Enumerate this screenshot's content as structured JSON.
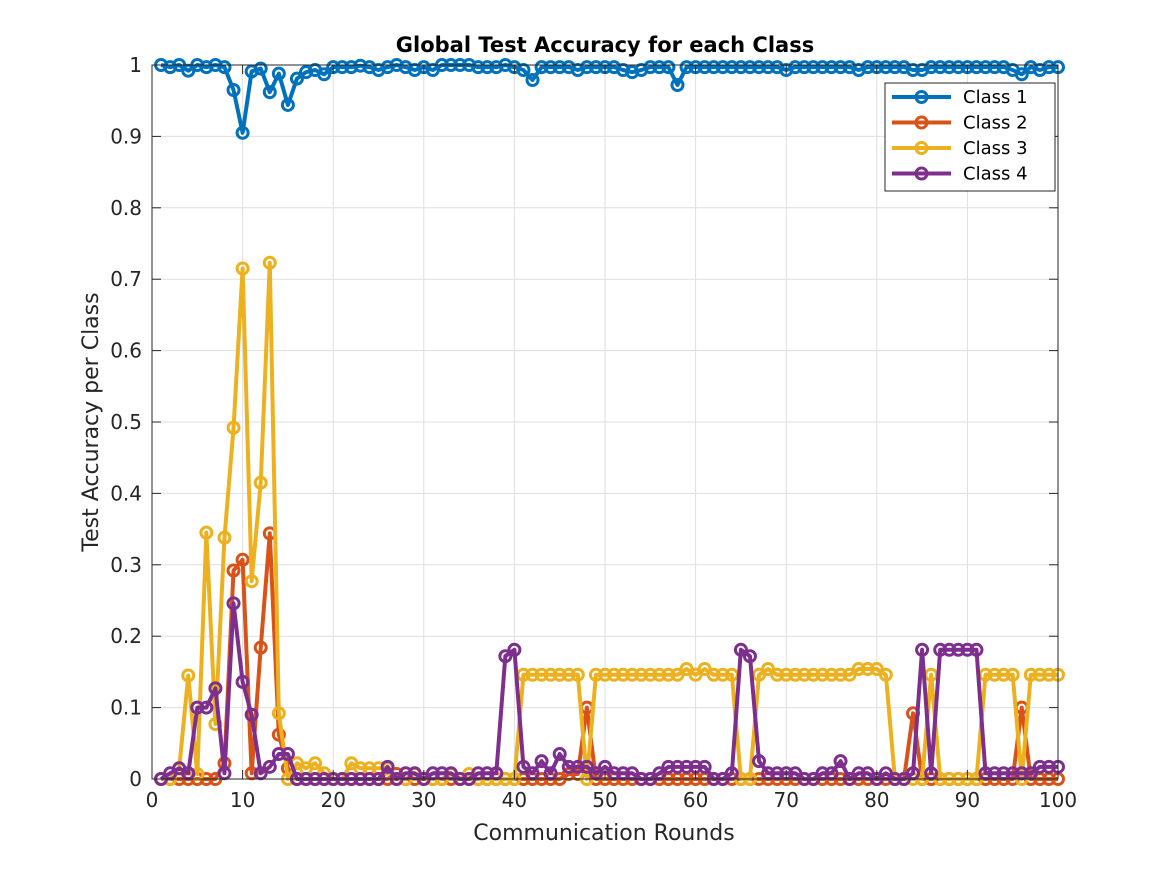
{
  "chart_data": {
    "type": "line",
    "title": "Global Test Accuracy for each Class",
    "xlabel": "Communication Rounds",
    "ylabel": "Test Accuracy per Class",
    "xlim": [
      0,
      100
    ],
    "ylim": [
      0,
      1
    ],
    "xticks": [
      "0",
      "10",
      "20",
      "30",
      "40",
      "50",
      "60",
      "70",
      "80",
      "90",
      "100"
    ],
    "yticks": [
      "0",
      "0.1",
      "0.2",
      "0.3",
      "0.4",
      "0.5",
      "0.6",
      "0.7",
      "0.8",
      "0.9",
      "1"
    ],
    "grid": true,
    "legend_position": "top-right",
    "x": [
      1,
      2,
      3,
      4,
      5,
      6,
      7,
      8,
      9,
      10,
      11,
      12,
      13,
      14,
      15,
      16,
      17,
      18,
      19,
      20,
      21,
      22,
      23,
      24,
      25,
      26,
      27,
      28,
      29,
      30,
      31,
      32,
      33,
      34,
      35,
      36,
      37,
      38,
      39,
      40,
      41,
      42,
      43,
      44,
      45,
      46,
      47,
      48,
      49,
      50,
      51,
      52,
      53,
      54,
      55,
      56,
      57,
      58,
      59,
      60,
      61,
      62,
      63,
      64,
      65,
      66,
      67,
      68,
      69,
      70,
      71,
      72,
      73,
      74,
      75,
      76,
      77,
      78,
      79,
      80,
      81,
      82,
      83,
      84,
      85,
      86,
      87,
      88,
      89,
      90,
      91,
      92,
      93,
      94,
      95,
      96,
      97,
      98,
      99,
      100
    ],
    "series": [
      {
        "name": "Class 1",
        "color": "#0072BD",
        "values": [
          1.0,
          0.997,
          1.0,
          0.992,
          1.0,
          0.997,
          1.0,
          0.997,
          0.965,
          0.905,
          0.991,
          0.995,
          0.962,
          0.988,
          0.944,
          0.981,
          0.99,
          0.993,
          0.987,
          0.997,
          0.997,
          0.997,
          0.999,
          0.997,
          0.993,
          0.997,
          1.0,
          0.997,
          0.993,
          0.997,
          0.993,
          1.0,
          1.0,
          1.0,
          1.0,
          0.997,
          0.997,
          0.997,
          1.0,
          0.997,
          0.993,
          0.979,
          0.997,
          0.997,
          0.997,
          0.997,
          0.993,
          0.997,
          0.997,
          0.997,
          0.997,
          0.993,
          0.99,
          0.993,
          0.997,
          0.997,
          0.997,
          0.972,
          0.997,
          0.997,
          0.997,
          0.997,
          0.997,
          0.997,
          0.997,
          0.997,
          0.997,
          0.997,
          0.997,
          0.993,
          0.997,
          0.997,
          0.997,
          0.997,
          0.997,
          0.997,
          0.997,
          0.993,
          0.997,
          0.997,
          0.997,
          0.997,
          0.997,
          0.993,
          0.993,
          0.997,
          0.997,
          0.997,
          0.997,
          0.997,
          0.997,
          0.997,
          0.997,
          0.997,
          0.993,
          0.987,
          0.997,
          0.993,
          0.997,
          0.997
        ]
      },
      {
        "name": "Class 2",
        "color": "#D95319",
        "values": [
          0.0,
          0.0,
          0.0,
          0.0,
          0.0,
          0.0,
          0.0,
          0.022,
          0.292,
          0.307,
          0.008,
          0.184,
          0.344,
          0.062,
          0.015,
          0.0,
          0.0,
          0.0,
          0.0,
          0.0,
          0.0,
          0.0,
          0.0,
          0.0,
          0.0,
          0.0,
          0.007,
          0.0,
          0.0,
          0.0,
          0.0,
          0.0,
          0.0,
          0.0,
          0.0,
          0.0,
          0.0,
          0.0,
          0.0,
          0.0,
          0.0,
          0.0,
          0.0,
          0.0,
          0.0,
          0.007,
          0.007,
          0.1,
          0.0,
          0.0,
          0.0,
          0.0,
          0.0,
          0.0,
          0.0,
          0.0,
          0.0,
          0.0,
          0.0,
          0.0,
          0.0,
          0.0,
          0.0,
          0.0,
          0.0,
          0.0,
          0.0,
          0.0,
          0.0,
          0.0,
          0.0,
          0.0,
          0.0,
          0.0,
          0.0,
          0.0,
          0.0,
          0.0,
          0.0,
          0.0,
          0.0,
          0.0,
          0.0,
          0.092,
          0.0,
          0.0,
          0.0,
          0.0,
          0.0,
          0.0,
          0.0,
          0.0,
          0.0,
          0.0,
          0.0,
          0.1,
          0.0,
          0.0,
          0.0,
          0.0
        ]
      },
      {
        "name": "Class 3",
        "color": "#EDB120",
        "values": [
          0.0,
          0.0,
          0.015,
          0.145,
          0.007,
          0.345,
          0.077,
          0.338,
          0.492,
          0.715,
          0.277,
          0.415,
          0.723,
          0.092,
          0.0,
          0.022,
          0.015,
          0.022,
          0.008,
          0.0,
          0.0,
          0.022,
          0.015,
          0.015,
          0.015,
          0.015,
          0.0,
          0.0,
          0.007,
          0.0,
          0.0,
          0.0,
          0.007,
          0.0,
          0.007,
          0.0,
          0.0,
          0.0,
          0.0,
          0.0,
          0.146,
          0.146,
          0.146,
          0.146,
          0.146,
          0.146,
          0.146,
          0.0,
          0.146,
          0.146,
          0.146,
          0.146,
          0.146,
          0.146,
          0.146,
          0.146,
          0.146,
          0.146,
          0.154,
          0.146,
          0.154,
          0.146,
          0.146,
          0.146,
          0.0,
          0.0,
          0.146,
          0.154,
          0.146,
          0.146,
          0.146,
          0.146,
          0.146,
          0.146,
          0.146,
          0.146,
          0.146,
          0.154,
          0.154,
          0.154,
          0.146,
          0.0,
          0.0,
          0.0,
          0.0,
          0.146,
          0.0,
          0.0,
          0.0,
          0.0,
          0.0,
          0.146,
          0.146,
          0.146,
          0.146,
          0.0,
          0.146,
          0.146,
          0.146,
          0.146
        ]
      },
      {
        "name": "Class 4",
        "color": "#7E2F8E",
        "values": [
          0.0,
          0.008,
          0.015,
          0.008,
          0.1,
          0.1,
          0.127,
          0.008,
          0.246,
          0.136,
          0.09,
          0.008,
          0.017,
          0.035,
          0.035,
          0.0,
          0.0,
          0.0,
          0.0,
          0.0,
          0.0,
          0.0,
          0.0,
          0.0,
          0.0,
          0.017,
          0.0,
          0.008,
          0.008,
          0.0,
          0.008,
          0.008,
          0.008,
          0.0,
          0.0,
          0.008,
          0.008,
          0.008,
          0.172,
          0.181,
          0.017,
          0.008,
          0.025,
          0.008,
          0.035,
          0.017,
          0.017,
          0.017,
          0.008,
          0.017,
          0.008,
          0.008,
          0.008,
          0.0,
          0.0,
          0.008,
          0.017,
          0.017,
          0.017,
          0.017,
          0.017,
          0.0,
          0.0,
          0.008,
          0.181,
          0.172,
          0.025,
          0.008,
          0.008,
          0.008,
          0.008,
          0.0,
          0.0,
          0.008,
          0.008,
          0.025,
          0.0,
          0.008,
          0.008,
          0.0,
          0.008,
          0.0,
          0.0,
          0.008,
          0.181,
          0.008,
          0.181,
          0.181,
          0.181,
          0.181,
          0.181,
          0.008,
          0.008,
          0.008,
          0.008,
          0.008,
          0.008,
          0.017,
          0.017,
          0.017
        ]
      }
    ]
  }
}
